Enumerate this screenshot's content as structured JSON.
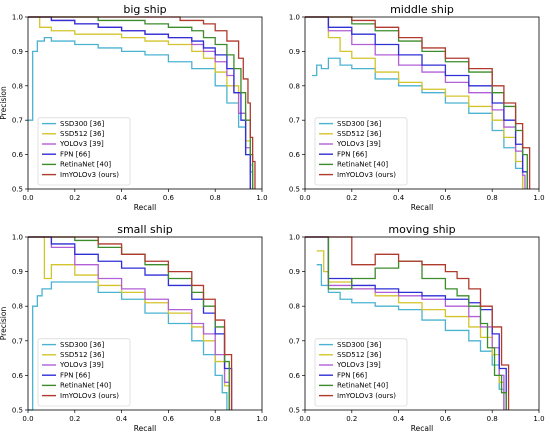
{
  "chart_data": [
    {
      "type": "line",
      "title": "big ship",
      "xlabel": "Recall",
      "ylabel": "Precision",
      "xlim": [
        0,
        1
      ],
      "ylim": [
        0.5,
        1
      ],
      "xticks": [
        "0.0",
        "0.2",
        "0.4",
        "0.6",
        "0.8",
        "1.0"
      ],
      "yticks": [
        "0.5",
        "0.6",
        "0.7",
        "0.8",
        "0.9",
        "1.0"
      ],
      "legend_position": "lower-left",
      "series": [
        {
          "name": "SSD300 [36]",
          "color": "#4bb3d1",
          "x": [
            0,
            0.02,
            0.04,
            0.07,
            0.1,
            0.2,
            0.3,
            0.4,
            0.5,
            0.6,
            0.7,
            0.8,
            0.85,
            0.9,
            0.93,
            0.95,
            0.96
          ],
          "y": [
            0.7,
            0.9,
            0.93,
            0.94,
            0.93,
            0.92,
            0.91,
            0.9,
            0.89,
            0.87,
            0.85,
            0.8,
            0.75,
            0.68,
            0.6,
            0.55,
            0.5
          ]
        },
        {
          "name": "SSD512 [36]",
          "color": "#d4c42c",
          "x": [
            0,
            0.05,
            0.1,
            0.2,
            0.3,
            0.4,
            0.5,
            0.6,
            0.7,
            0.75,
            0.8,
            0.85,
            0.9,
            0.93,
            0.95,
            0.96
          ],
          "y": [
            1.0,
            0.97,
            0.96,
            0.95,
            0.95,
            0.94,
            0.93,
            0.92,
            0.9,
            0.88,
            0.84,
            0.8,
            0.72,
            0.64,
            0.57,
            0.5
          ]
        },
        {
          "name": "YOLOv3 [39]",
          "color": "#b15fd6",
          "x": [
            0,
            0.1,
            0.2,
            0.3,
            0.4,
            0.5,
            0.6,
            0.7,
            0.75,
            0.8,
            0.85,
            0.88,
            0.9,
            0.93,
            0.95
          ],
          "y": [
            1.0,
            0.99,
            0.98,
            0.97,
            0.96,
            0.95,
            0.94,
            0.92,
            0.9,
            0.87,
            0.83,
            0.78,
            0.72,
            0.62,
            0.5
          ]
        },
        {
          "name": "FPN [66]",
          "color": "#2f2fd6",
          "x": [
            0,
            0.1,
            0.2,
            0.3,
            0.4,
            0.5,
            0.6,
            0.7,
            0.75,
            0.8,
            0.85,
            0.88,
            0.91,
            0.93,
            0.95
          ],
          "y": [
            1.0,
            0.99,
            0.98,
            0.97,
            0.96,
            0.95,
            0.94,
            0.93,
            0.91,
            0.89,
            0.85,
            0.78,
            0.7,
            0.6,
            0.5
          ]
        },
        {
          "name": "RetinaNet [40]",
          "color": "#3c8c2c",
          "x": [
            0,
            0.2,
            0.3,
            0.4,
            0.5,
            0.6,
            0.7,
            0.75,
            0.8,
            0.85,
            0.88,
            0.91,
            0.93,
            0.95,
            0.96
          ],
          "y": [
            1.0,
            1.0,
            0.99,
            0.99,
            0.98,
            0.97,
            0.96,
            0.94,
            0.92,
            0.89,
            0.85,
            0.78,
            0.7,
            0.6,
            0.5
          ]
        },
        {
          "name": "ImYOLOv3 (ours)",
          "color": "#b03a2e",
          "x": [
            0,
            0.2,
            0.4,
            0.6,
            0.65,
            0.7,
            0.75,
            0.8,
            0.85,
            0.9,
            0.92,
            0.94,
            0.95,
            0.96,
            0.97
          ],
          "y": [
            1.0,
            1.0,
            1.0,
            1.0,
            0.99,
            0.99,
            0.98,
            0.96,
            0.93,
            0.88,
            0.82,
            0.75,
            0.65,
            0.58,
            0.5
          ]
        }
      ]
    },
    {
      "type": "line",
      "title": "middle ship",
      "xlabel": "Recall",
      "ylabel": "",
      "xlim": [
        0,
        1
      ],
      "ylim": [
        0.5,
        1
      ],
      "xticks": [
        "0.0",
        "0.2",
        "0.4",
        "0.6",
        "0.8",
        "1.0"
      ],
      "yticks": [
        "0.5",
        "0.6",
        "0.7",
        "0.8",
        "0.9",
        "1.0"
      ],
      "legend_position": "lower-left",
      "series": [
        {
          "name": "SSD300 [36]",
          "color": "#4bb3d1",
          "x": [
            0.03,
            0.05,
            0.07,
            0.1,
            0.15,
            0.2,
            0.3,
            0.4,
            0.5,
            0.6,
            0.7,
            0.8,
            0.85,
            0.9,
            0.93
          ],
          "y": [
            0.83,
            0.86,
            0.85,
            0.88,
            0.86,
            0.85,
            0.82,
            0.8,
            0.78,
            0.75,
            0.72,
            0.67,
            0.62,
            0.56,
            0.5
          ]
        },
        {
          "name": "SSD512 [36]",
          "color": "#d4c42c",
          "x": [
            0,
            0.1,
            0.15,
            0.2,
            0.3,
            0.4,
            0.5,
            0.6,
            0.7,
            0.8,
            0.85,
            0.9,
            0.93
          ],
          "y": [
            1.0,
            0.94,
            0.9,
            0.88,
            0.84,
            0.81,
            0.79,
            0.77,
            0.74,
            0.7,
            0.65,
            0.58,
            0.5
          ]
        },
        {
          "name": "YOLOv3 [39]",
          "color": "#b15fd6",
          "x": [
            0,
            0.1,
            0.2,
            0.3,
            0.4,
            0.5,
            0.6,
            0.7,
            0.8,
            0.85,
            0.9,
            0.93,
            0.94
          ],
          "y": [
            1.0,
            0.96,
            0.92,
            0.89,
            0.86,
            0.84,
            0.81,
            0.78,
            0.73,
            0.68,
            0.61,
            0.54,
            0.5
          ]
        },
        {
          "name": "FPN [66]",
          "color": "#2f2fd6",
          "x": [
            0,
            0.1,
            0.2,
            0.3,
            0.4,
            0.5,
            0.6,
            0.7,
            0.8,
            0.85,
            0.9,
            0.93,
            0.95
          ],
          "y": [
            1.0,
            0.97,
            0.95,
            0.92,
            0.89,
            0.86,
            0.83,
            0.8,
            0.75,
            0.7,
            0.63,
            0.55,
            0.5
          ]
        },
        {
          "name": "RetinaNet [40]",
          "color": "#3c8c2c",
          "x": [
            0,
            0.1,
            0.2,
            0.3,
            0.4,
            0.5,
            0.6,
            0.7,
            0.8,
            0.85,
            0.9,
            0.93,
            0.95
          ],
          "y": [
            1.0,
            1.0,
            0.98,
            0.96,
            0.93,
            0.9,
            0.87,
            0.84,
            0.78,
            0.74,
            0.67,
            0.6,
            0.5
          ]
        },
        {
          "name": "ImYOLOv3 (ours)",
          "color": "#b03a2e",
          "x": [
            0,
            0.1,
            0.2,
            0.3,
            0.4,
            0.5,
            0.6,
            0.7,
            0.8,
            0.85,
            0.9,
            0.93,
            0.96
          ],
          "y": [
            1.0,
            1.0,
            0.99,
            0.97,
            0.94,
            0.91,
            0.88,
            0.85,
            0.8,
            0.75,
            0.69,
            0.62,
            0.5
          ]
        }
      ]
    },
    {
      "type": "line",
      "title": "small ship",
      "xlabel": "Recall",
      "ylabel": "Precision",
      "xlim": [
        0,
        1
      ],
      "ylim": [
        0.5,
        1
      ],
      "xticks": [
        "0.0",
        "0.2",
        "0.4",
        "0.6",
        "0.8",
        "1.0"
      ],
      "yticks": [
        "0.5",
        "0.6",
        "0.7",
        "0.8",
        "0.9",
        "1.0"
      ],
      "legend_position": "lower-left",
      "series": [
        {
          "name": "SSD300 [36]",
          "color": "#4bb3d1",
          "x": [
            0,
            0.02,
            0.04,
            0.06,
            0.1,
            0.2,
            0.3,
            0.4,
            0.5,
            0.6,
            0.7,
            0.75,
            0.8,
            0.83,
            0.85
          ],
          "y": [
            0.5,
            0.8,
            0.83,
            0.85,
            0.87,
            0.87,
            0.84,
            0.82,
            0.78,
            0.75,
            0.7,
            0.66,
            0.6,
            0.55,
            0.5
          ]
        },
        {
          "name": "SSD512 [36]",
          "color": "#d4c42c",
          "x": [
            0,
            0.05,
            0.07,
            0.1,
            0.2,
            0.3,
            0.4,
            0.5,
            0.6,
            0.7,
            0.75,
            0.8,
            0.84,
            0.86
          ],
          "y": [
            1.0,
            1.0,
            0.88,
            0.92,
            0.89,
            0.86,
            0.84,
            0.81,
            0.78,
            0.74,
            0.7,
            0.64,
            0.57,
            0.5
          ]
        },
        {
          "name": "YOLOv3 [39]",
          "color": "#b15fd6",
          "x": [
            0,
            0.1,
            0.2,
            0.3,
            0.4,
            0.5,
            0.6,
            0.7,
            0.75,
            0.8,
            0.84,
            0.86
          ],
          "y": [
            1.0,
            0.97,
            0.92,
            0.88,
            0.85,
            0.82,
            0.79,
            0.75,
            0.72,
            0.66,
            0.58,
            0.5
          ]
        },
        {
          "name": "FPN [66]",
          "color": "#2f2fd6",
          "x": [
            0,
            0.1,
            0.2,
            0.3,
            0.4,
            0.5,
            0.6,
            0.7,
            0.75,
            0.8,
            0.84,
            0.87
          ],
          "y": [
            1.0,
            0.98,
            0.95,
            0.93,
            0.91,
            0.89,
            0.86,
            0.82,
            0.78,
            0.72,
            0.62,
            0.5
          ]
        },
        {
          "name": "RetinaNet [40]",
          "color": "#3c8c2c",
          "x": [
            0,
            0.1,
            0.2,
            0.3,
            0.4,
            0.5,
            0.6,
            0.7,
            0.75,
            0.8,
            0.84,
            0.86
          ],
          "y": [
            1.0,
            1.0,
            0.99,
            0.97,
            0.95,
            0.92,
            0.88,
            0.84,
            0.8,
            0.74,
            0.64,
            0.5
          ]
        },
        {
          "name": "ImYOLOv3 (ours)",
          "color": "#b03a2e",
          "x": [
            0,
            0.2,
            0.3,
            0.4,
            0.5,
            0.6,
            0.7,
            0.75,
            0.8,
            0.84,
            0.87
          ],
          "y": [
            1.0,
            1.0,
            0.98,
            0.95,
            0.93,
            0.9,
            0.86,
            0.82,
            0.76,
            0.66,
            0.5
          ]
        }
      ]
    },
    {
      "type": "line",
      "title": "moving ship",
      "xlabel": "Recall",
      "ylabel": "",
      "xlim": [
        0,
        1
      ],
      "ylim": [
        0.5,
        1
      ],
      "xticks": [
        "0.0",
        "0.2",
        "0.4",
        "0.6",
        "0.8",
        "1.0"
      ],
      "yticks": [
        "0.5",
        "0.6",
        "0.7",
        "0.8",
        "0.9",
        "1.0"
      ],
      "legend_position": "lower-left",
      "series": [
        {
          "name": "SSD300 [36]",
          "color": "#4bb3d1",
          "x": [
            0.05,
            0.07,
            0.1,
            0.15,
            0.2,
            0.3,
            0.4,
            0.5,
            0.6,
            0.7,
            0.75,
            0.8,
            0.83,
            0.85
          ],
          "y": [
            0.92,
            0.86,
            0.84,
            0.82,
            0.81,
            0.8,
            0.79,
            0.76,
            0.73,
            0.7,
            0.67,
            0.63,
            0.56,
            0.5
          ]
        },
        {
          "name": "SSD512 [36]",
          "color": "#d4c42c",
          "x": [
            0.05,
            0.08,
            0.1,
            0.2,
            0.3,
            0.4,
            0.5,
            0.6,
            0.7,
            0.75,
            0.8,
            0.83,
            0.85
          ],
          "y": [
            0.96,
            0.9,
            0.87,
            0.85,
            0.83,
            0.81,
            0.79,
            0.77,
            0.74,
            0.71,
            0.66,
            0.58,
            0.5
          ]
        },
        {
          "name": "YOLOv3 [39]",
          "color": "#b15fd6",
          "x": [
            0,
            0.05,
            0.1,
            0.2,
            0.3,
            0.4,
            0.5,
            0.6,
            0.7,
            0.75,
            0.8,
            0.83,
            0.85
          ],
          "y": [
            1.0,
            1.0,
            0.86,
            0.85,
            0.84,
            0.83,
            0.82,
            0.8,
            0.77,
            0.74,
            0.68,
            0.6,
            0.5
          ]
        },
        {
          "name": "FPN [66]",
          "color": "#2f2fd6",
          "x": [
            0,
            0.1,
            0.2,
            0.3,
            0.4,
            0.5,
            0.6,
            0.7,
            0.75,
            0.8,
            0.83,
            0.86
          ],
          "y": [
            1.0,
            0.88,
            0.86,
            0.85,
            0.84,
            0.83,
            0.82,
            0.81,
            0.79,
            0.72,
            0.62,
            0.5
          ]
        },
        {
          "name": "RetinaNet [40]",
          "color": "#3c8c2c",
          "x": [
            0,
            0.05,
            0.1,
            0.2,
            0.3,
            0.4,
            0.5,
            0.6,
            0.65,
            0.7,
            0.75,
            0.78,
            0.81,
            0.84,
            0.86
          ],
          "y": [
            1.0,
            1.0,
            0.85,
            0.88,
            0.91,
            0.93,
            0.88,
            0.85,
            0.83,
            0.8,
            0.75,
            0.68,
            0.6,
            0.55,
            0.5
          ]
        },
        {
          "name": "ImYOLOv3 (ours)",
          "color": "#b03a2e",
          "x": [
            0,
            0.1,
            0.2,
            0.3,
            0.4,
            0.5,
            0.6,
            0.65,
            0.7,
            0.75,
            0.8,
            0.84,
            0.87
          ],
          "y": [
            1.0,
            1.0,
            0.92,
            0.95,
            0.93,
            0.92,
            0.9,
            0.88,
            0.85,
            0.8,
            0.74,
            0.63,
            0.5
          ]
        }
      ]
    }
  ]
}
